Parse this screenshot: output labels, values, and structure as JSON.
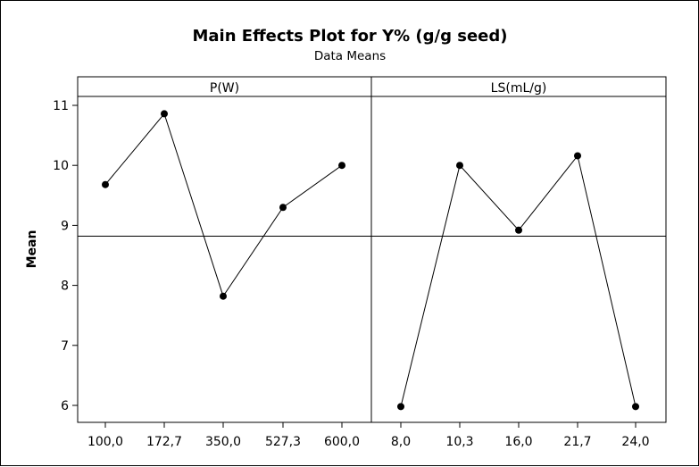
{
  "chart_data": {
    "type": "line",
    "title": "Main Effects Plot for Y% (g/g seed)",
    "subtitle": "Data Means",
    "ylabel": "Mean",
    "ylim": [
      5.7,
      11.15
    ],
    "yticks": [
      6,
      7,
      8,
      9,
      10,
      11
    ],
    "reference_line": 8.82,
    "grid": false,
    "panels": [
      {
        "name": "P(W)",
        "categories": [
          "100,0",
          "172,7",
          "350,0",
          "527,3",
          "600,0"
        ],
        "values": [
          9.68,
          10.86,
          7.82,
          9.3,
          10.0
        ]
      },
      {
        "name": "LS(mL/g)",
        "categories": [
          "8,0",
          "10,3",
          "16,0",
          "21,7",
          "24,0"
        ],
        "values": [
          5.98,
          10.0,
          8.92,
          10.16,
          5.98
        ]
      }
    ]
  }
}
